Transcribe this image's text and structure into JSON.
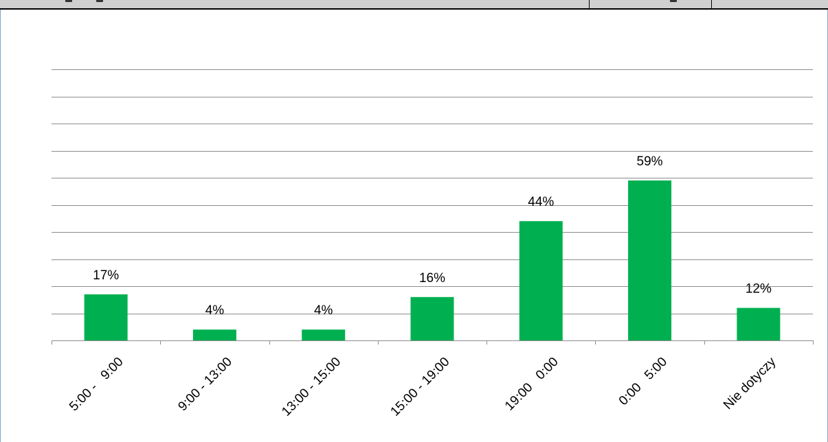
{
  "colors": {
    "bar": "#00b050",
    "grid": "#8c8c8c",
    "axis": "#8c8c8c",
    "frame_border": "#7fa7c9",
    "header_fill": "#d0d0d0"
  },
  "chart_data": {
    "type": "bar",
    "categories": [
      "5:00 -   9:00",
      "9:00 - 13:00",
      "13:00 - 15:00",
      "15:00 - 19:00",
      "19:00   0:00",
      "0:00   5:00",
      "Nie dotyczy"
    ],
    "values": [
      17,
      4,
      4,
      16,
      44,
      59,
      12
    ],
    "data_labels": [
      "17%",
      "4%",
      "4%",
      "16%",
      "44%",
      "59%",
      "12%"
    ],
    "title": "",
    "xlabel": "",
    "ylabel": "",
    "ylim": [
      0,
      100
    ],
    "grid": true,
    "legend": "none"
  }
}
